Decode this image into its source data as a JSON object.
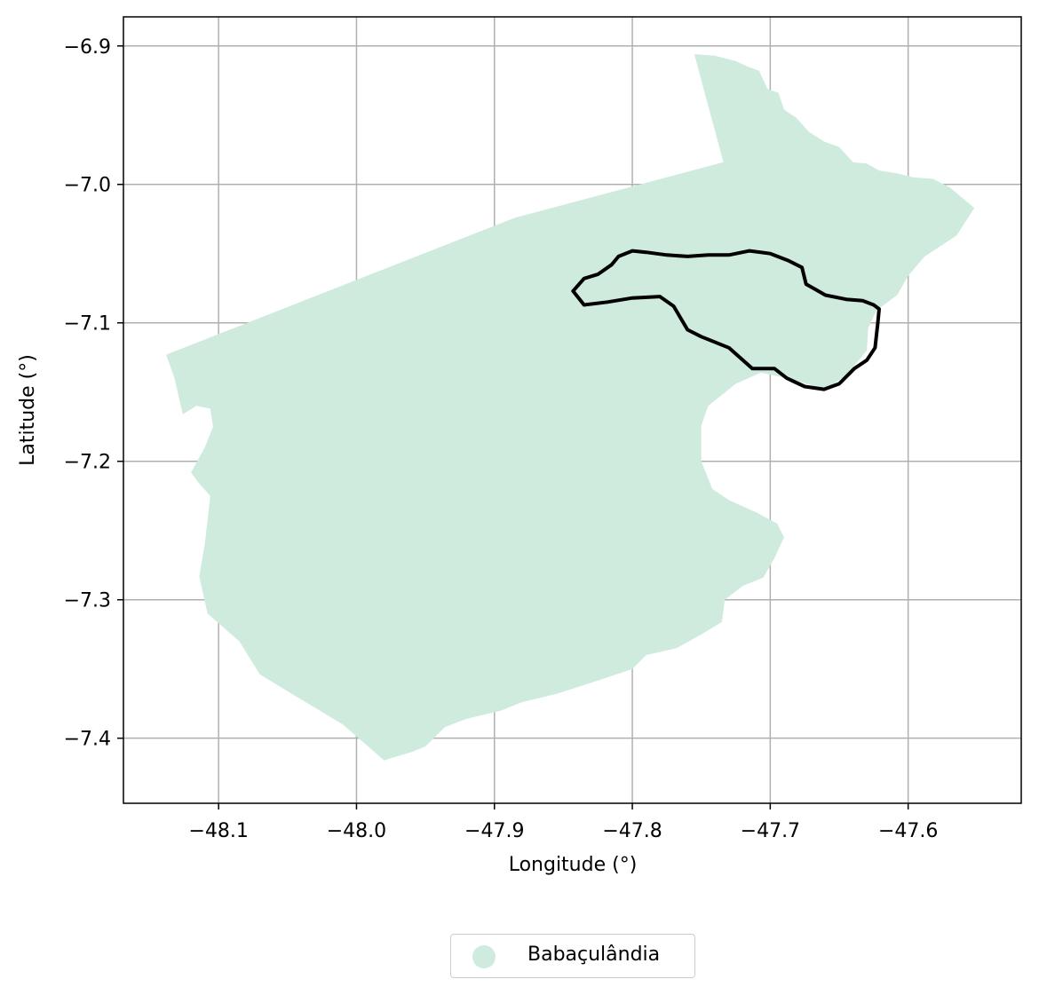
{
  "chart_data": {
    "type": "map",
    "xlabel": "Longitude (°)",
    "ylabel": "Latitude (°)",
    "xlim": [
      -48.169,
      -47.518
    ],
    "ylim": [
      -7.447,
      -6.879
    ],
    "xticks": [
      -48.1,
      -48.0,
      -47.9,
      -47.8,
      -47.7,
      -47.6
    ],
    "xtick_labels": [
      "−48.1",
      "−48.0",
      "−47.9",
      "−47.8",
      "−47.7",
      "−47.6"
    ],
    "yticks": [
      -6.9,
      -7.0,
      -7.1,
      -7.2,
      -7.3,
      -7.4
    ],
    "ytick_labels": [
      "−6.9",
      "−7.0",
      "−7.1",
      "−7.2",
      "−7.3",
      "−7.4"
    ],
    "grid": true,
    "legend_position": "bottom-center",
    "legend": [
      {
        "label": "Babaçulândia",
        "color": "#cfebdd"
      }
    ],
    "colors": {
      "region_fill": "#cfebdd",
      "outline": "#000000",
      "grid": "#b0b0b0"
    },
    "region": {
      "name": "Babaçulândia",
      "polygon": [
        [
          -48.138,
          -7.123
        ],
        [
          -47.885,
          -7.024
        ],
        [
          -47.734,
          -6.984
        ],
        [
          -47.755,
          -6.906
        ],
        [
          -47.74,
          -6.907
        ],
        [
          -47.725,
          -6.911
        ],
        [
          -47.716,
          -6.915
        ],
        [
          -47.708,
          -6.918
        ],
        [
          -47.702,
          -6.931
        ],
        [
          -47.694,
          -6.934
        ],
        [
          -47.69,
          -6.946
        ],
        [
          -47.681,
          -6.952
        ],
        [
          -47.672,
          -6.962
        ],
        [
          -47.661,
          -6.969
        ],
        [
          -47.65,
          -6.973
        ],
        [
          -47.64,
          -6.984
        ],
        [
          -47.63,
          -6.985
        ],
        [
          -47.621,
          -6.99
        ],
        [
          -47.608,
          -6.992
        ],
        [
          -47.596,
          -6.995
        ],
        [
          -47.582,
          -6.996
        ],
        [
          -47.57,
          -7.002
        ],
        [
          -47.552,
          -7.017
        ],
        [
          -47.565,
          -7.037
        ],
        [
          -47.588,
          -7.052
        ],
        [
          -47.6,
          -7.066
        ],
        [
          -47.608,
          -7.08
        ],
        [
          -47.623,
          -7.091
        ],
        [
          -47.629,
          -7.104
        ],
        [
          -47.63,
          -7.12
        ],
        [
          -47.645,
          -7.138
        ],
        [
          -47.66,
          -7.148
        ],
        [
          -47.688,
          -7.14
        ],
        [
          -47.707,
          -7.136
        ],
        [
          -47.725,
          -7.144
        ],
        [
          -47.745,
          -7.16
        ],
        [
          -47.75,
          -7.174
        ],
        [
          -47.75,
          -7.2
        ],
        [
          -47.742,
          -7.22
        ],
        [
          -47.73,
          -7.228
        ],
        [
          -47.71,
          -7.237
        ],
        [
          -47.695,
          -7.245
        ],
        [
          -47.69,
          -7.255
        ],
        [
          -47.697,
          -7.27
        ],
        [
          -47.705,
          -7.284
        ],
        [
          -47.72,
          -7.29
        ],
        [
          -47.733,
          -7.3
        ],
        [
          -47.735,
          -7.316
        ],
        [
          -47.75,
          -7.325
        ],
        [
          -47.768,
          -7.335
        ],
        [
          -47.79,
          -7.34
        ],
        [
          -47.8,
          -7.35
        ],
        [
          -47.83,
          -7.36
        ],
        [
          -47.855,
          -7.368
        ],
        [
          -47.88,
          -7.374
        ],
        [
          -47.895,
          -7.38
        ],
        [
          -47.92,
          -7.386
        ],
        [
          -47.936,
          -7.392
        ],
        [
          -47.95,
          -7.406
        ],
        [
          -47.96,
          -7.41
        ],
        [
          -47.98,
          -7.416
        ],
        [
          -48.01,
          -7.39
        ],
        [
          -48.05,
          -7.366
        ],
        [
          -48.07,
          -7.354
        ],
        [
          -48.085,
          -7.33
        ],
        [
          -48.108,
          -7.31
        ],
        [
          -48.114,
          -7.283
        ],
        [
          -48.11,
          -7.26
        ],
        [
          -48.106,
          -7.225
        ],
        [
          -48.115,
          -7.215
        ],
        [
          -48.12,
          -7.208
        ],
        [
          -48.11,
          -7.19
        ],
        [
          -48.104,
          -7.175
        ],
        [
          -48.106,
          -7.162
        ],
        [
          -48.116,
          -7.16
        ],
        [
          -48.126,
          -7.166
        ],
        [
          -48.132,
          -7.14
        ],
        [
          -48.138,
          -7.123
        ]
      ]
    },
    "outline": {
      "polygon": [
        [
          -47.843,
          -7.077
        ],
        [
          -47.835,
          -7.068
        ],
        [
          -47.825,
          -7.065
        ],
        [
          -47.815,
          -7.058
        ],
        [
          -47.81,
          -7.052
        ],
        [
          -47.8,
          -7.048
        ],
        [
          -47.79,
          -7.049
        ],
        [
          -47.775,
          -7.051
        ],
        [
          -47.76,
          -7.052
        ],
        [
          -47.745,
          -7.051
        ],
        [
          -47.73,
          -7.051
        ],
        [
          -47.715,
          -7.048
        ],
        [
          -47.7,
          -7.05
        ],
        [
          -47.687,
          -7.055
        ],
        [
          -47.677,
          -7.06
        ],
        [
          -47.674,
          -7.072
        ],
        [
          -47.667,
          -7.076
        ],
        [
          -47.66,
          -7.08
        ],
        [
          -47.645,
          -7.083
        ],
        [
          -47.633,
          -7.084
        ],
        [
          -47.625,
          -7.087
        ],
        [
          -47.621,
          -7.09
        ],
        [
          -47.622,
          -7.1
        ],
        [
          -47.624,
          -7.118
        ],
        [
          -47.63,
          -7.127
        ],
        [
          -47.639,
          -7.133
        ],
        [
          -47.65,
          -7.144
        ],
        [
          -47.661,
          -7.148
        ],
        [
          -47.675,
          -7.146
        ],
        [
          -47.688,
          -7.14
        ],
        [
          -47.697,
          -7.133
        ],
        [
          -47.713,
          -7.133
        ],
        [
          -47.73,
          -7.118
        ],
        [
          -47.75,
          -7.11
        ],
        [
          -47.76,
          -7.105
        ],
        [
          -47.77,
          -7.088
        ],
        [
          -47.78,
          -7.081
        ],
        [
          -47.8,
          -7.082
        ],
        [
          -47.818,
          -7.085
        ],
        [
          -47.835,
          -7.087
        ],
        [
          -47.843,
          -7.077
        ]
      ]
    }
  }
}
